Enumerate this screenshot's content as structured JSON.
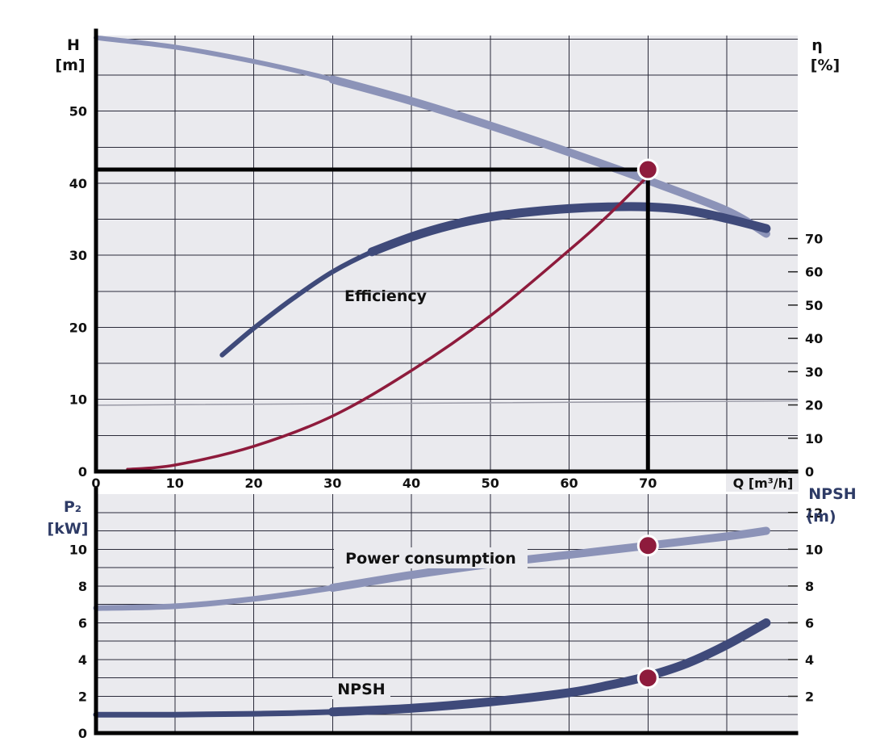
{
  "chart_data": [
    {
      "type": "line",
      "panel": "top",
      "left_axis": {
        "label": "H",
        "unit": "[m]",
        "ticks": [
          0,
          10,
          20,
          30,
          40,
          50
        ],
        "ylim": [
          0,
          60.5
        ]
      },
      "right_axis": {
        "label": "η",
        "unit": "[%]",
        "ticks": [
          0,
          10,
          20,
          30,
          40,
          50,
          60,
          70
        ],
        "ylim": [
          0,
          131
        ]
      },
      "x_axis": {
        "label": "Q [m³/h]",
        "ticks": [
          0,
          10,
          20,
          30,
          40,
          50,
          60,
          70
        ],
        "xlim": [
          0,
          89
        ]
      },
      "grid": true,
      "series": [
        {
          "color": "#8c93b8",
          "axis": "H",
          "x": [
            0,
            10,
            20,
            30,
            40,
            50,
            60,
            70,
            80,
            85
          ],
          "y": [
            60.2,
            58.9,
            56.9,
            54.4,
            51.4,
            48.0,
            44.3,
            40.4,
            36.2,
            33.0
          ]
        },
        {
          "name": "Efficiency",
          "color": "#3f4a7a",
          "axis": "eta",
          "x": [
            16,
            20,
            25,
            30,
            35,
            40,
            45,
            50,
            55,
            60,
            65,
            70,
            75,
            80,
            85
          ],
          "y": [
            35,
            43,
            52,
            60,
            66,
            70.5,
            74,
            76.5,
            78,
            79,
            79.5,
            79.5,
            78.5,
            76,
            73
          ]
        },
        {
          "color": "#8e1b3c",
          "axis": "H",
          "x": [
            4,
            10,
            20,
            30,
            40,
            50,
            60,
            65,
            70
          ],
          "y": [
            0.3,
            0.9,
            3.5,
            7.7,
            14.0,
            21.6,
            30.7,
            35.6,
            41.0
          ]
        },
        {
          "color": "#9a9aa6",
          "axis": "H",
          "x": [
            0,
            89
          ],
          "y": [
            9.2,
            9.8
          ]
        }
      ],
      "operating_point": {
        "x": 70,
        "y": 41.9
      }
    },
    {
      "type": "line",
      "panel": "bottom",
      "left_axis": {
        "label": "P₂",
        "unit": "[kW]",
        "ticks": [
          0,
          2,
          4,
          6,
          8,
          10
        ],
        "ylim": [
          0,
          13
        ]
      },
      "right_axis": {
        "label": "NPSH",
        "unit": "(m)",
        "ticks": [
          2,
          4,
          6,
          8,
          10,
          12
        ],
        "ylim": [
          0,
          13
        ]
      },
      "grid": true,
      "series": [
        {
          "name": "Power consumption",
          "color": "#8c93b8",
          "axis": "P2",
          "x": [
            0,
            10,
            20,
            30,
            40,
            50,
            60,
            70,
            80,
            85
          ],
          "y": [
            6.8,
            6.9,
            7.3,
            7.9,
            8.6,
            9.2,
            9.7,
            10.2,
            10.7,
            11.0
          ]
        },
        {
          "name": "NPSH",
          "color": "#3f4a7a",
          "axis": "NPSH",
          "x": [
            0,
            10,
            20,
            30,
            40,
            50,
            60,
            65,
            70,
            75,
            80,
            85
          ],
          "y": [
            1.0,
            1.0,
            1.05,
            1.15,
            1.35,
            1.7,
            2.2,
            2.6,
            3.1,
            3.8,
            4.8,
            6.0
          ]
        }
      ],
      "operating_points": [
        {
          "x": 70,
          "y": 10.2
        },
        {
          "x": 70,
          "y": 3.0
        }
      ]
    }
  ]
}
